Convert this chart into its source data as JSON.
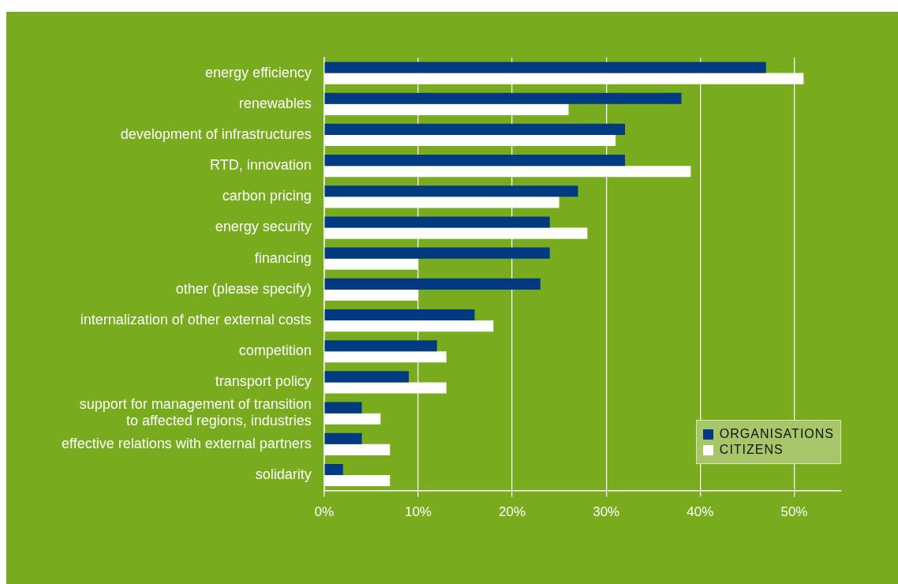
{
  "chart_data": {
    "type": "bar",
    "orientation": "horizontal",
    "categories": [
      "energy efficiency",
      "renewables",
      "development of infrastructures",
      "RTD, innovation",
      "carbon pricing",
      "energy security",
      "financing",
      "other (please specify)",
      "internalization of other external costs",
      "competition",
      "transport policy",
      "support for management of transition\nto affected regions, industries",
      "effective relations with external partners",
      "solidarity"
    ],
    "series": [
      {
        "name": "ORGANISATIONS",
        "color": "#003a80",
        "values": [
          47,
          38,
          32,
          32,
          27,
          24,
          24,
          23,
          16,
          12,
          9,
          4,
          4,
          2
        ]
      },
      {
        "name": "CITIZENS",
        "color": "#ffffff",
        "values": [
          51,
          26,
          31,
          39,
          25,
          28,
          10,
          10,
          18,
          13,
          13,
          6,
          7,
          7
        ]
      }
    ],
    "xlim": [
      0,
      55
    ],
    "xticks": [
      {
        "value": 0,
        "label": "0%"
      },
      {
        "value": 10,
        "label": "10%"
      },
      {
        "value": 20,
        "label": "20%"
      },
      {
        "value": 30,
        "label": "30%"
      },
      {
        "value": 40,
        "label": "40%"
      },
      {
        "value": 50,
        "label": "50%"
      }
    ],
    "grid": "x",
    "legend": "bottom right"
  }
}
